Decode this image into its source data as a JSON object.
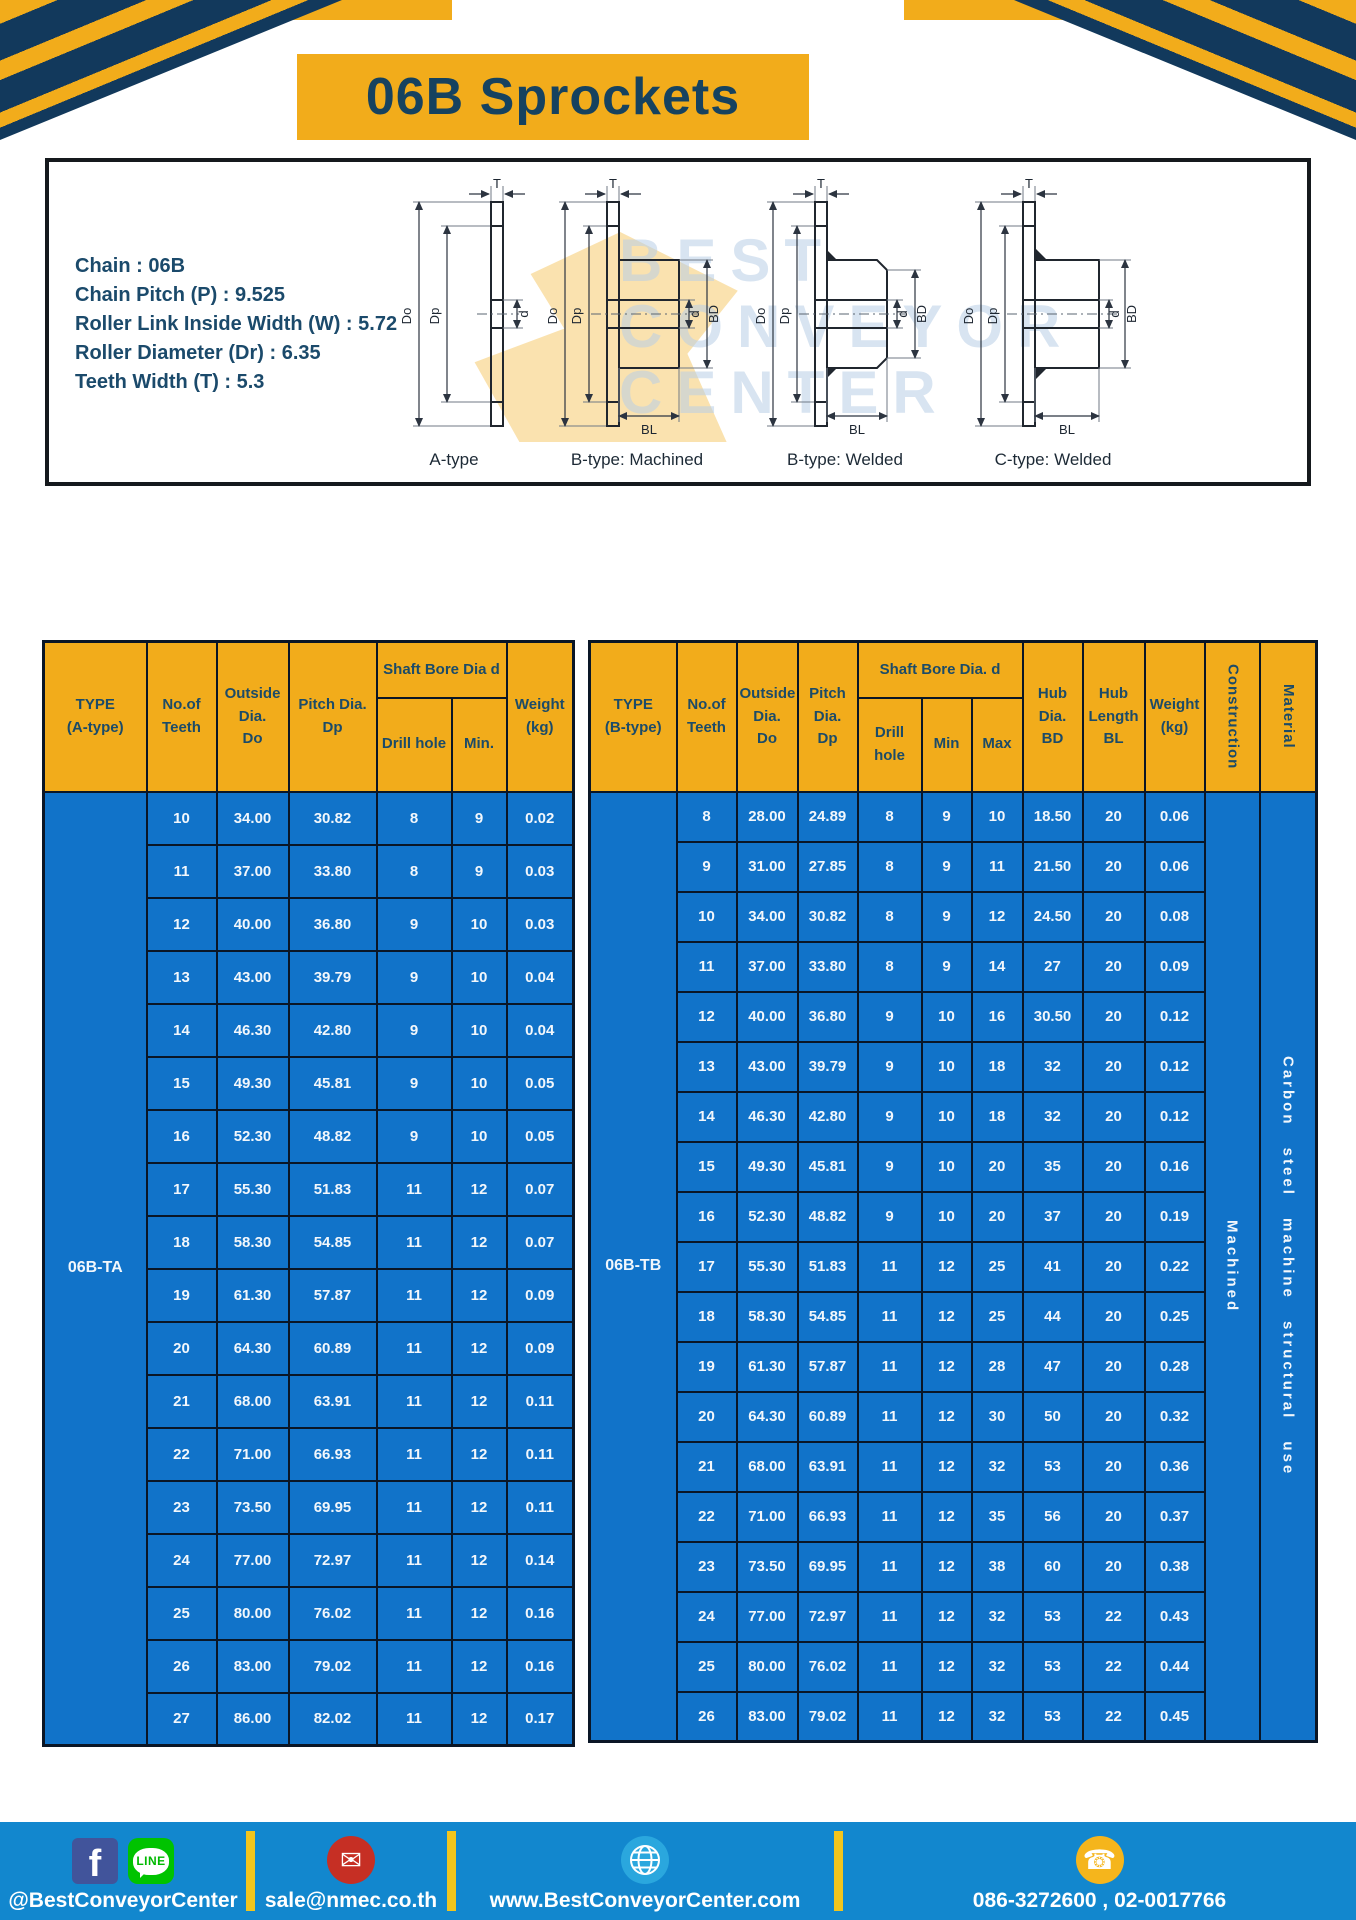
{
  "page": {
    "title": "06B Sprockets"
  },
  "specs": {
    "lines": [
      "Chain  :  06B",
      "Chain Pitch (P)  :  9.525",
      "Roller Link Inside Width (W)  :  5.72",
      "Roller Diameter (Dr)  : 6.35",
      "Teeth Width (T)  :  5.3"
    ]
  },
  "diagrams": {
    "labels": [
      "A-type",
      "B-type: Machined",
      "B-type: Welded",
      "C-type: Welded"
    ],
    "dims": {
      "T": "T",
      "Do": "Do",
      "Dp": "Dp",
      "d": "d",
      "BD": "BD",
      "BL": "BL"
    },
    "watermark_lines": [
      "BEST",
      "CONVEYOR",
      "CENTER"
    ]
  },
  "table_a": {
    "type_label": "06B-TA",
    "headers": {
      "type": "TYPE\n(A-type)",
      "teeth": "No.of\nTeeth",
      "outside": "Outside\nDia.\nDo",
      "pitch": "Pitch Dia.\nDp",
      "shaft_bore": "Shaft Bore Dia d",
      "drill": "Drill hole",
      "min": "Min.",
      "weight": "Weight\n(kg)"
    },
    "rows": [
      [
        "10",
        "34.00",
        "30.82",
        "8",
        "9",
        "0.02"
      ],
      [
        "11",
        "37.00",
        "33.80",
        "8",
        "9",
        "0.03"
      ],
      [
        "12",
        "40.00",
        "36.80",
        "9",
        "10",
        "0.03"
      ],
      [
        "13",
        "43.00",
        "39.79",
        "9",
        "10",
        "0.04"
      ],
      [
        "14",
        "46.30",
        "42.80",
        "9",
        "10",
        "0.04"
      ],
      [
        "15",
        "49.30",
        "45.81",
        "9",
        "10",
        "0.05"
      ],
      [
        "16",
        "52.30",
        "48.82",
        "9",
        "10",
        "0.05"
      ],
      [
        "17",
        "55.30",
        "51.83",
        "11",
        "12",
        "0.07"
      ],
      [
        "18",
        "58.30",
        "54.85",
        "11",
        "12",
        "0.07"
      ],
      [
        "19",
        "61.30",
        "57.87",
        "11",
        "12",
        "0.09"
      ],
      [
        "20",
        "64.30",
        "60.89",
        "11",
        "12",
        "0.09"
      ],
      [
        "21",
        "68.00",
        "63.91",
        "11",
        "12",
        "0.11"
      ],
      [
        "22",
        "71.00",
        "66.93",
        "11",
        "12",
        "0.11"
      ],
      [
        "23",
        "73.50",
        "69.95",
        "11",
        "12",
        "0.11"
      ],
      [
        "24",
        "77.00",
        "72.97",
        "11",
        "12",
        "0.14"
      ],
      [
        "25",
        "80.00",
        "76.02",
        "11",
        "12",
        "0.16"
      ],
      [
        "26",
        "83.00",
        "79.02",
        "11",
        "12",
        "0.16"
      ],
      [
        "27",
        "86.00",
        "82.02",
        "11",
        "12",
        "0.17"
      ]
    ]
  },
  "table_b": {
    "type_label": "06B-TB",
    "headers": {
      "type": "TYPE\n(B-type)",
      "teeth": "No.of\nTeeth",
      "outside": "Outside\nDia.\nDo",
      "pitch": "Pitch\nDia.\nDp",
      "shaft_bore": "Shaft Bore Dia.  d",
      "drill": "Drill hole",
      "min": "Min",
      "max": "Max",
      "hub_dia": "Hub\nDia.\nBD",
      "hub_len": "Hub\nLength\nBL",
      "weight": "Weight\n(kg)",
      "construction": "Construction",
      "material": "Material"
    },
    "construction_value": "Machined",
    "material_value": "Carbon steel machine structural use",
    "rows": [
      [
        "8",
        "28.00",
        "24.89",
        "8",
        "9",
        "10",
        "18.50",
        "20",
        "0.06"
      ],
      [
        "9",
        "31.00",
        "27.85",
        "8",
        "9",
        "11",
        "21.50",
        "20",
        "0.06"
      ],
      [
        "10",
        "34.00",
        "30.82",
        "8",
        "9",
        "12",
        "24.50",
        "20",
        "0.08"
      ],
      [
        "11",
        "37.00",
        "33.80",
        "8",
        "9",
        "14",
        "27",
        "20",
        "0.09"
      ],
      [
        "12",
        "40.00",
        "36.80",
        "9",
        "10",
        "16",
        "30.50",
        "20",
        "0.12"
      ],
      [
        "13",
        "43.00",
        "39.79",
        "9",
        "10",
        "18",
        "32",
        "20",
        "0.12"
      ],
      [
        "14",
        "46.30",
        "42.80",
        "9",
        "10",
        "18",
        "32",
        "20",
        "0.12"
      ],
      [
        "15",
        "49.30",
        "45.81",
        "9",
        "10",
        "20",
        "35",
        "20",
        "0.16"
      ],
      [
        "16",
        "52.30",
        "48.82",
        "9",
        "10",
        "20",
        "37",
        "20",
        "0.19"
      ],
      [
        "17",
        "55.30",
        "51.83",
        "11",
        "12",
        "25",
        "41",
        "20",
        "0.22"
      ],
      [
        "18",
        "58.30",
        "54.85",
        "11",
        "12",
        "25",
        "44",
        "20",
        "0.25"
      ],
      [
        "19",
        "61.30",
        "57.87",
        "11",
        "12",
        "28",
        "47",
        "20",
        "0.28"
      ],
      [
        "20",
        "64.30",
        "60.89",
        "11",
        "12",
        "30",
        "50",
        "20",
        "0.32"
      ],
      [
        "21",
        "68.00",
        "63.91",
        "11",
        "12",
        "32",
        "53",
        "20",
        "0.36"
      ],
      [
        "22",
        "71.00",
        "66.93",
        "11",
        "12",
        "35",
        "56",
        "20",
        "0.37"
      ],
      [
        "23",
        "73.50",
        "69.95",
        "11",
        "12",
        "38",
        "60",
        "20",
        "0.38"
      ],
      [
        "24",
        "77.00",
        "72.97",
        "11",
        "12",
        "32",
        "53",
        "22",
        "0.43"
      ],
      [
        "25",
        "80.00",
        "76.02",
        "11",
        "12",
        "32",
        "53",
        "22",
        "0.44"
      ],
      [
        "26",
        "83.00",
        "79.02",
        "11",
        "12",
        "32",
        "53",
        "22",
        "0.45"
      ]
    ]
  },
  "footer": {
    "facebook_letter": "f",
    "line_text": "LINE",
    "mail_glyph": "✉",
    "phone_glyph": "☎",
    "sections": [
      {
        "label": "@BestConveyorCenter"
      },
      {
        "label": "sale@nmec.co.th"
      },
      {
        "label": "www.BestConveyorCenter.com"
      },
      {
        "label": "086-3272600 , 02-0017766"
      }
    ]
  },
  "colors": {
    "accent_yellow": "#F2AC1B",
    "table_blue": "#1173C9",
    "footer_blue": "#1287CE",
    "navy_text": "#16425F"
  }
}
